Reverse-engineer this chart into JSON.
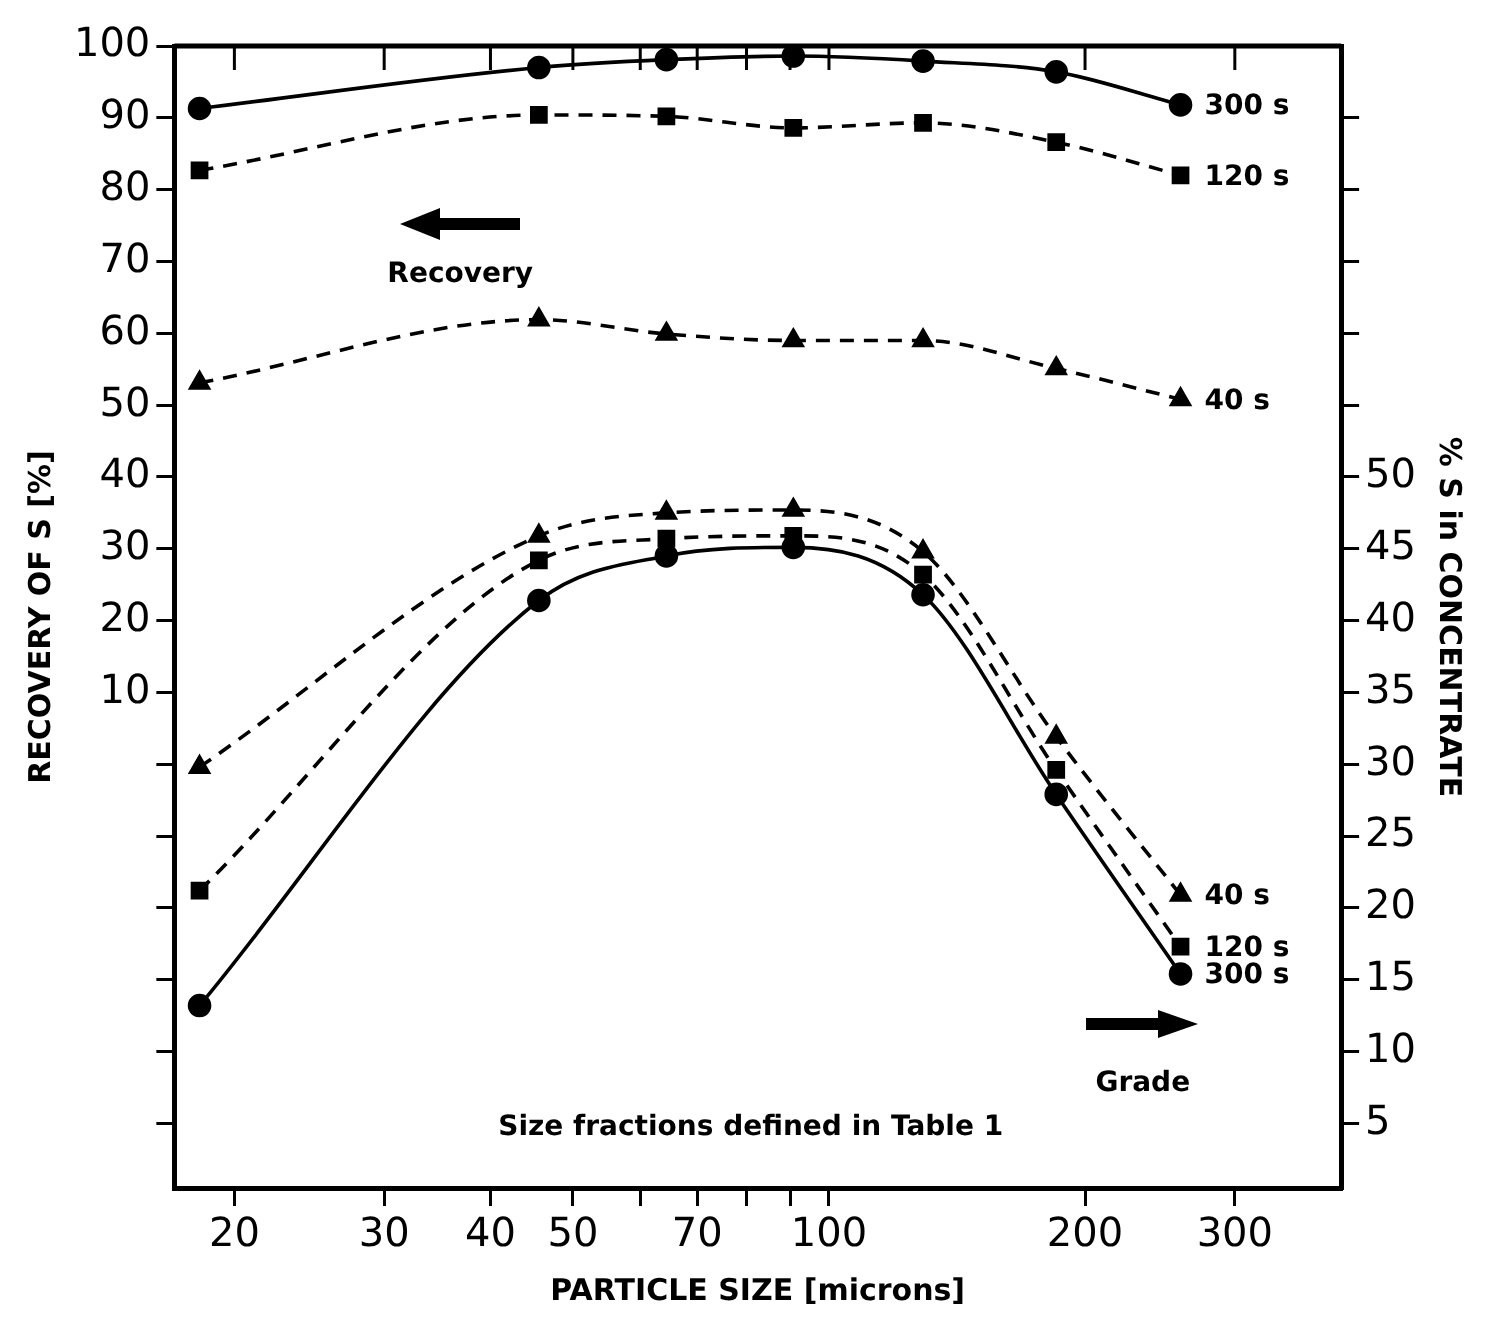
{
  "chart_data": {
    "type": "line",
    "xlabel": "PARTICLE SIZE [microns]",
    "ylabel": "RECOVERY OF S [%]",
    "y2label": "% S in CONCENTRATE",
    "x": [
      18.2,
      45.6,
      64.4,
      90.8,
      129,
      185,
      259
    ],
    "log": "x",
    "xlim": [
      17,
      400
    ],
    "xticks": [
      20,
      30,
      40,
      50,
      {
        "value": 60,
        "label": null
      },
      70,
      {
        "value": 80,
        "label": null
      },
      {
        "value": 90,
        "label": null
      },
      100,
      200,
      300
    ],
    "ylim": [
      -59,
      100
    ],
    "yticks": [
      {
        "value": -50,
        "label": null
      },
      {
        "value": -40,
        "label": null
      },
      {
        "value": -30,
        "label": null
      },
      {
        "value": -20,
        "label": null
      },
      {
        "value": -10,
        "label": null
      },
      {
        "value": 0,
        "label": null
      },
      10,
      20,
      30,
      40,
      50,
      60,
      70,
      80,
      90,
      100
    ],
    "y2lim": [
      0.5,
      80
    ],
    "y2ticks": [
      5,
      10,
      15,
      20,
      25,
      30,
      35,
      40,
      45,
      50,
      {
        "value": 55,
        "label": null
      },
      {
        "value": 60,
        "label": null
      },
      {
        "value": 65,
        "label": null
      },
      {
        "value": 70,
        "label": null
      },
      {
        "value": 75,
        "label": null
      }
    ],
    "series": [
      {
        "name": "300 s",
        "color": "#000000",
        "marker": "circle",
        "line_style": "solid",
        "values": [
          91.3,
          97,
          98.1,
          98.6,
          97.9,
          96.4,
          91.8
        ]
      },
      {
        "name": "120 s",
        "color": "#000000",
        "marker": "square",
        "line_style": "dashed",
        "values": [
          82.7,
          90.4,
          90.2,
          88.6,
          89.3,
          86.6,
          82
        ]
      },
      {
        "name": "40 s",
        "color": "#000000",
        "marker": "triangle",
        "line_style": "dashed",
        "values": [
          53.1,
          61.9,
          59.9,
          59,
          59,
          55.1,
          50.8
        ]
      },
      {
        "name": "40 s",
        "color": "#000000",
        "marker": "triangle",
        "line_style": "dashed",
        "axis": "y2",
        "values": [
          29.8,
          45.9,
          47.5,
          47.7,
          44.8,
          31.9,
          20.9
        ]
      },
      {
        "name": "120 s",
        "color": "#000000",
        "marker": "square",
        "line_style": "dashed",
        "axis": "y2",
        "values": [
          21.2,
          44.2,
          45.7,
          45.9,
          43.2,
          29.6,
          17.3
        ]
      },
      {
        "name": "300 s",
        "color": "#000000",
        "marker": "circle",
        "line_style": "solid",
        "axis": "y2",
        "values": [
          13.2,
          41.4,
          44.5,
          45.1,
          41.8,
          27.9,
          15.4
        ]
      }
    ],
    "annotations": [
      "Recovery",
      "Grade",
      "Size fractions defined in Table 1"
    ],
    "grid": false
  }
}
